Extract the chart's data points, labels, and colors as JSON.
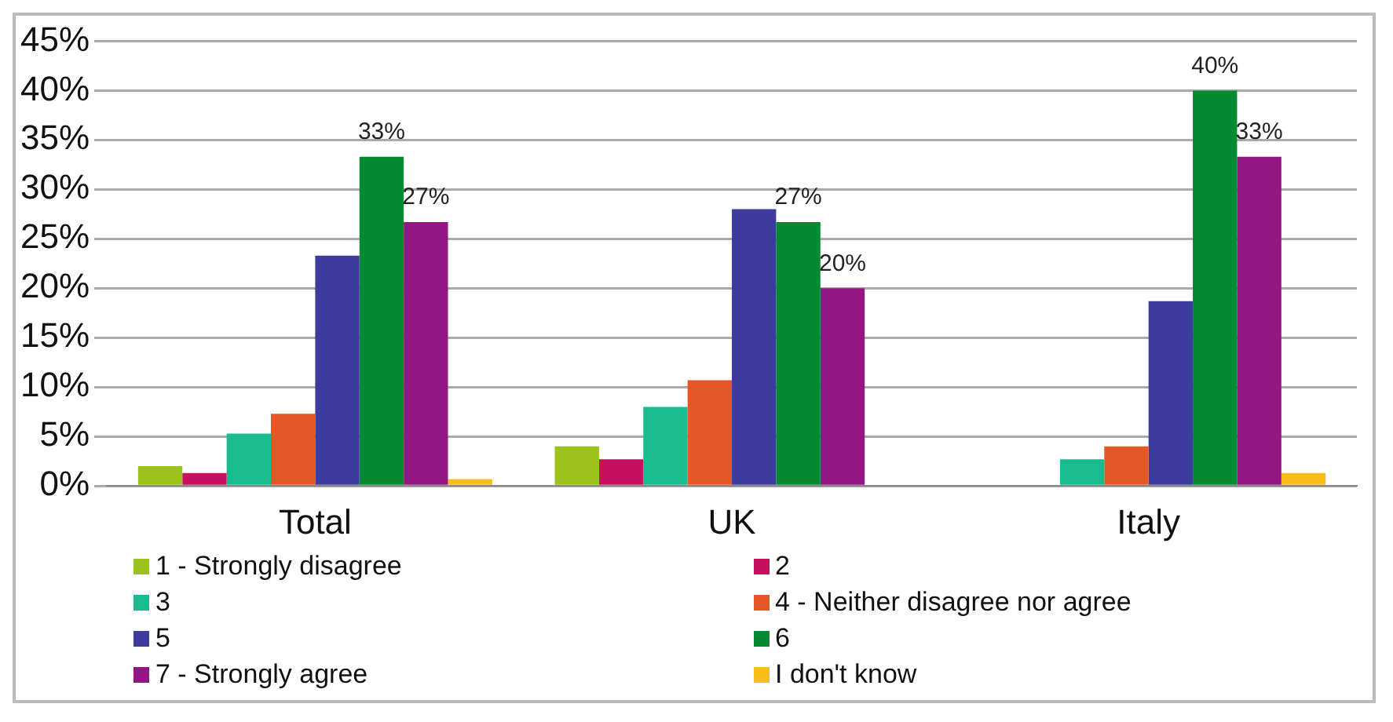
{
  "chart_data": {
    "type": "bar",
    "categories": [
      "Total",
      "UK",
      "Italy"
    ],
    "series": [
      {
        "name": "1  -  Strongly disagree",
        "color": "#9bc31b",
        "values": [
          2.0,
          4.0,
          null
        ]
      },
      {
        "name": "2",
        "color": "#c8105f",
        "values": [
          1.3,
          2.7,
          null
        ]
      },
      {
        "name": "3",
        "color": "#1abc8f",
        "values": [
          5.3,
          8.0,
          2.7
        ]
      },
      {
        "name": "4  -  Neither disagree nor agree",
        "color": "#e65627",
        "values": [
          7.3,
          10.7,
          4.0
        ]
      },
      {
        "name": "5",
        "color": "#3d3b9e",
        "values": [
          23.3,
          28.0,
          18.7
        ]
      },
      {
        "name": "6",
        "color": "#038a32",
        "values": [
          33.3,
          26.7,
          40.0
        ],
        "value_labels": [
          "33%",
          "27%",
          "40%"
        ]
      },
      {
        "name": "7  -  Strongly agree",
        "color": "#921782",
        "values": [
          26.7,
          20.0,
          33.3
        ],
        "value_labels": [
          "27%",
          "20%",
          "33%"
        ]
      },
      {
        "name": "I don't know",
        "color": "#f7be19",
        "values": [
          0.7,
          null,
          1.3
        ]
      }
    ],
    "ylim": [
      0,
      45
    ],
    "yticks": [
      {
        "value": 0,
        "label": "0%"
      },
      {
        "value": 5,
        "label": "5%"
      },
      {
        "value": 10,
        "label": "10%"
      },
      {
        "value": 15,
        "label": "15%"
      },
      {
        "value": 20,
        "label": "20%"
      },
      {
        "value": 25,
        "label": "25%"
      },
      {
        "value": 30,
        "label": "30%"
      },
      {
        "value": 35,
        "label": "35%"
      },
      {
        "value": 40,
        "label": "40%"
      },
      {
        "value": 45,
        "label": "45%"
      }
    ],
    "grid": "y",
    "legend": "bottom"
  }
}
